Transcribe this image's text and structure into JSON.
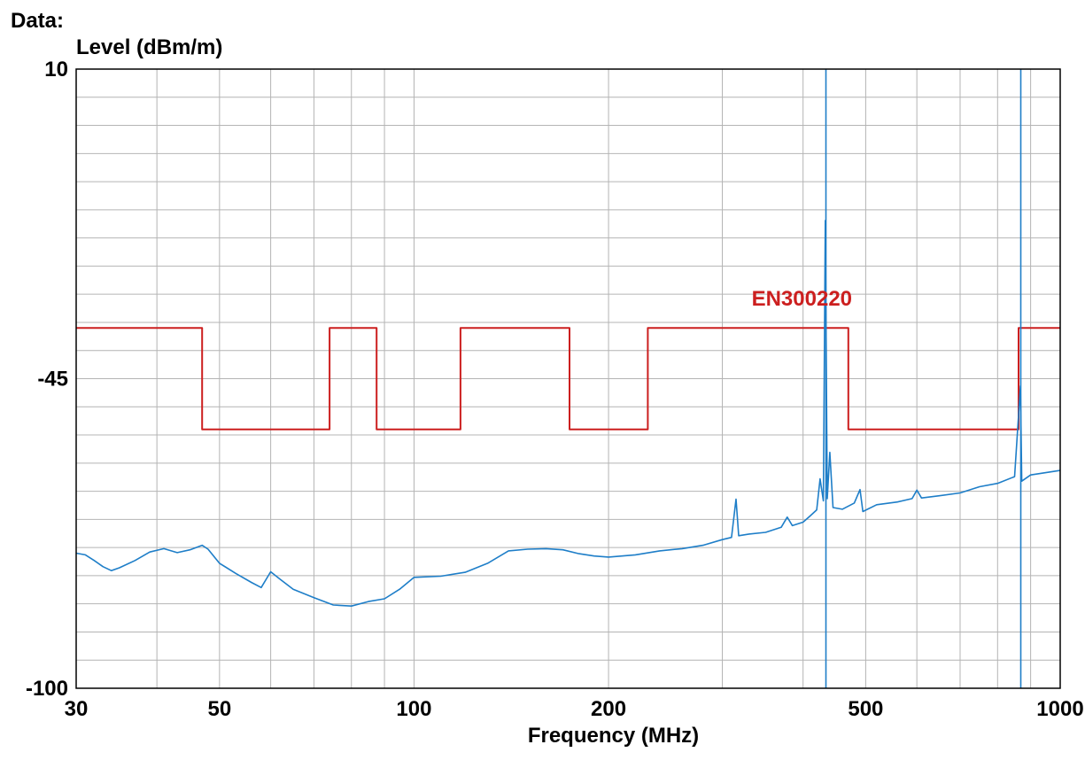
{
  "header": {
    "data_label": "Data:"
  },
  "chart_data": {
    "type": "line",
    "title": "",
    "xlabel": "Frequency (MHz)",
    "ylabel": "Level (dBm/m)",
    "x_scale": "log",
    "xlim": [
      30,
      1000
    ],
    "ylim": [
      -100,
      10
    ],
    "grid": true,
    "x_ticks": [
      {
        "value": 30,
        "label": "30"
      },
      {
        "value": 50,
        "label": "50"
      },
      {
        "value": 100,
        "label": "100"
      },
      {
        "value": 200,
        "label": "200"
      },
      {
        "value": 500,
        "label": "500"
      },
      {
        "value": 1000,
        "label": "1000"
      }
    ],
    "y_ticks": [
      {
        "value": 10,
        "label": "10"
      },
      {
        "value": -45,
        "label": "-45"
      },
      {
        "value": -100,
        "label": "-100"
      }
    ],
    "series": [
      {
        "name": "EN300220",
        "color": "#cc1f1f",
        "kind": "step",
        "points": [
          [
            30,
            -36
          ],
          [
            47,
            -36
          ],
          [
            47,
            -54
          ],
          [
            74,
            -54
          ],
          [
            74,
            -36
          ],
          [
            87.5,
            -36
          ],
          [
            87.5,
            -54
          ],
          [
            118,
            -54
          ],
          [
            118,
            -36
          ],
          [
            174,
            -36
          ],
          [
            174,
            -54
          ],
          [
            230,
            -54
          ],
          [
            230,
            -36
          ],
          [
            470,
            -36
          ],
          [
            470,
            -54
          ],
          [
            862,
            -54
          ],
          [
            862,
            -36
          ],
          [
            1000,
            -36
          ]
        ]
      },
      {
        "color": "#1e7ec8",
        "kind": "line",
        "points": [
          [
            30,
            -76
          ],
          [
            31,
            -76.3
          ],
          [
            32,
            -77.3
          ],
          [
            33,
            -78.4
          ],
          [
            34,
            -79.1
          ],
          [
            35,
            -78.6
          ],
          [
            37,
            -77.3
          ],
          [
            39,
            -75.8
          ],
          [
            41,
            -75.2
          ],
          [
            43,
            -75.9
          ],
          [
            45,
            -75.4
          ],
          [
            47,
            -74.6
          ],
          [
            48,
            -75.3
          ],
          [
            50,
            -77.8
          ],
          [
            53,
            -79.6
          ],
          [
            56,
            -81.2
          ],
          [
            58,
            -82.1
          ],
          [
            60,
            -79.3
          ],
          [
            62,
            -80.6
          ],
          [
            65,
            -82.4
          ],
          [
            70,
            -83.9
          ],
          [
            75,
            -85.2
          ],
          [
            80,
            -85.4
          ],
          [
            85,
            -84.6
          ],
          [
            90,
            -84.1
          ],
          [
            95,
            -82.4
          ],
          [
            100,
            -80.3
          ],
          [
            110,
            -80.1
          ],
          [
            120,
            -79.4
          ],
          [
            130,
            -77.8
          ],
          [
            140,
            -75.6
          ],
          [
            150,
            -75.3
          ],
          [
            160,
            -75.2
          ],
          [
            170,
            -75.4
          ],
          [
            180,
            -76.1
          ],
          [
            190,
            -76.5
          ],
          [
            200,
            -76.7
          ],
          [
            220,
            -76.3
          ],
          [
            240,
            -75.6
          ],
          [
            260,
            -75.2
          ],
          [
            280,
            -74.6
          ],
          [
            300,
            -73.6
          ],
          [
            310,
            -73.2
          ],
          [
            315,
            -66.4
          ],
          [
            318,
            -72.9
          ],
          [
            330,
            -72.6
          ],
          [
            350,
            -72.3
          ],
          [
            370,
            -71.4
          ],
          [
            378,
            -69.6
          ],
          [
            385,
            -71.1
          ],
          [
            400,
            -70.5
          ],
          [
            410,
            -69.4
          ],
          [
            420,
            -68.3
          ],
          [
            425,
            -62.8
          ],
          [
            430,
            -66.7
          ],
          [
            433,
            -16.9
          ],
          [
            436,
            -66.3
          ],
          [
            440,
            -58.1
          ],
          [
            445,
            -67.9
          ],
          [
            460,
            -68.2
          ],
          [
            480,
            -67.1
          ],
          [
            490,
            -64.7
          ],
          [
            495,
            -68.6
          ],
          [
            520,
            -67.4
          ],
          [
            560,
            -66.9
          ],
          [
            590,
            -66.3
          ],
          [
            600,
            -64.8
          ],
          [
            610,
            -66.2
          ],
          [
            650,
            -65.8
          ],
          [
            700,
            -65.3
          ],
          [
            750,
            -64.2
          ],
          [
            800,
            -63.6
          ],
          [
            850,
            -62.4
          ],
          [
            868,
            -46.3
          ],
          [
            872,
            -63.2
          ],
          [
            900,
            -62.1
          ],
          [
            950,
            -61.7
          ],
          [
            1000,
            -61.3
          ]
        ]
      },
      {
        "color": "#1e7ec8",
        "kind": "marker",
        "points": [
          [
            433.92,
            10
          ],
          [
            433.92,
            -100
          ]
        ]
      },
      {
        "color": "#1e7ec8",
        "kind": "marker",
        "points": [
          [
            869,
            10
          ],
          [
            869,
            -100
          ]
        ]
      }
    ],
    "annotations": [
      {
        "text": "EN300220",
        "x": 333,
        "y": -32,
        "color": "#cc1f1f"
      }
    ],
    "grid_color": "#b4b4b4"
  }
}
